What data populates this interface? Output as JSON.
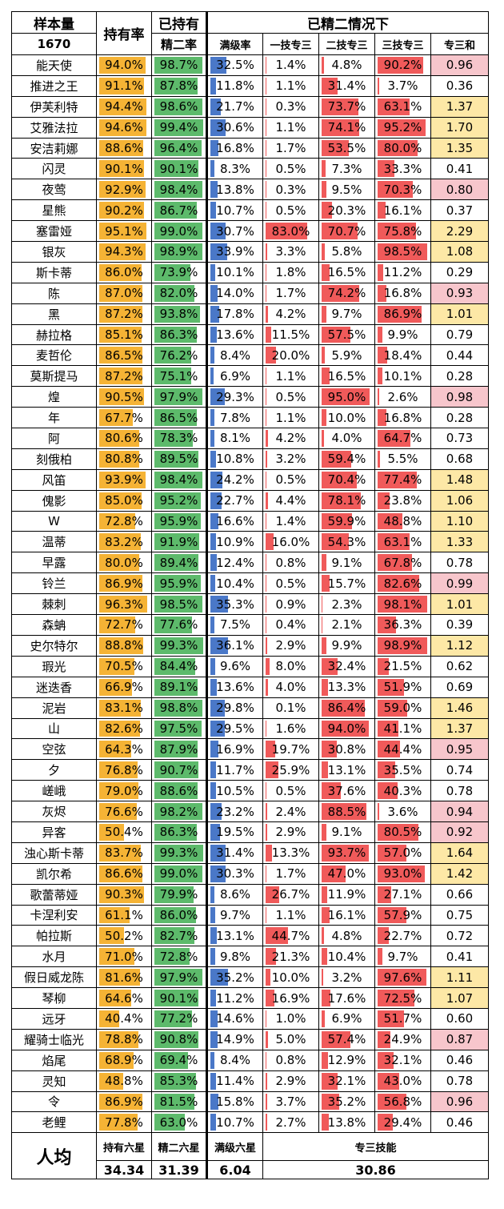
{
  "header": {
    "sample_label": "样本量",
    "sample_count": "1670",
    "own_rate": "持有率",
    "e2_rate_line1": "已持有",
    "e2_rate_line2": "精二率",
    "e2_group": "已精二情况下",
    "full_level": "满级率",
    "s1m3": "一技专三",
    "s2m3": "二技专三",
    "s3m3": "三技专三",
    "m3sum": "专三和"
  },
  "colors": {
    "own_bar": "#f5b335",
    "e2_bar": "#5dba6b",
    "level_bar": "#4a78c8",
    "skill_bar": "#f05a5a",
    "sum_yellow": "#fde8a6",
    "sum_pink": "#f7c6cc"
  },
  "rows": [
    {
      "name": "能天使",
      "own": "94.0%",
      "e2": "98.7%",
      "lvl": "32.5%",
      "s1": "1.4%",
      "s2": "4.8%",
      "s3": "90.2%",
      "sum": "0.96",
      "hl": "pink"
    },
    {
      "name": "推进之王",
      "own": "91.1%",
      "e2": "87.8%",
      "lvl": "11.8%",
      "s1": "1.1%",
      "s2": "31.4%",
      "s3": "3.7%",
      "sum": "0.36",
      "hl": ""
    },
    {
      "name": "伊芙利特",
      "own": "94.4%",
      "e2": "98.6%",
      "lvl": "21.7%",
      "s1": "0.3%",
      "s2": "73.7%",
      "s3": "63.1%",
      "sum": "1.37",
      "hl": "yellow"
    },
    {
      "name": "艾雅法拉",
      "own": "94.6%",
      "e2": "99.4%",
      "lvl": "30.6%",
      "s1": "1.1%",
      "s2": "74.1%",
      "s3": "95.2%",
      "sum": "1.70",
      "hl": "yellow"
    },
    {
      "name": "安洁莉娜",
      "own": "88.6%",
      "e2": "96.4%",
      "lvl": "16.8%",
      "s1": "1.7%",
      "s2": "53.5%",
      "s3": "80.0%",
      "sum": "1.35",
      "hl": "yellow"
    },
    {
      "name": "闪灵",
      "own": "90.1%",
      "e2": "90.1%",
      "lvl": "8.3%",
      "s1": "0.5%",
      "s2": "7.3%",
      "s3": "33.3%",
      "sum": "0.41",
      "hl": ""
    },
    {
      "name": "夜莺",
      "own": "92.9%",
      "e2": "98.4%",
      "lvl": "13.8%",
      "s1": "0.3%",
      "s2": "9.5%",
      "s3": "70.3%",
      "sum": "0.80",
      "hl": "pink"
    },
    {
      "name": "星熊",
      "own": "90.2%",
      "e2": "86.7%",
      "lvl": "10.7%",
      "s1": "0.5%",
      "s2": "20.3%",
      "s3": "16.1%",
      "sum": "0.37",
      "hl": ""
    },
    {
      "name": "塞雷娅",
      "own": "95.1%",
      "e2": "99.0%",
      "lvl": "30.7%",
      "s1": "83.0%",
      "s2": "70.7%",
      "s3": "75.8%",
      "sum": "2.29",
      "hl": "yellow"
    },
    {
      "name": "银灰",
      "own": "94.3%",
      "e2": "98.9%",
      "lvl": "33.9%",
      "s1": "3.3%",
      "s2": "5.8%",
      "s3": "98.5%",
      "sum": "1.08",
      "hl": "yellow"
    },
    {
      "name": "斯卡蒂",
      "own": "86.0%",
      "e2": "73.9%",
      "lvl": "10.1%",
      "s1": "1.8%",
      "s2": "16.5%",
      "s3": "11.2%",
      "sum": "0.29",
      "hl": ""
    },
    {
      "name": "陈",
      "own": "87.0%",
      "e2": "82.0%",
      "lvl": "14.0%",
      "s1": "1.7%",
      "s2": "74.2%",
      "s3": "16.8%",
      "sum": "0.93",
      "hl": "pink"
    },
    {
      "name": "黑",
      "own": "87.2%",
      "e2": "93.8%",
      "lvl": "17.8%",
      "s1": "4.2%",
      "s2": "9.7%",
      "s3": "86.9%",
      "sum": "1.01",
      "hl": "yellow"
    },
    {
      "name": "赫拉格",
      "own": "85.1%",
      "e2": "86.3%",
      "lvl": "13.6%",
      "s1": "11.5%",
      "s2": "57.5%",
      "s3": "9.9%",
      "sum": "0.79",
      "hl": ""
    },
    {
      "name": "麦哲伦",
      "own": "86.5%",
      "e2": "76.2%",
      "lvl": "8.4%",
      "s1": "20.0%",
      "s2": "5.9%",
      "s3": "18.4%",
      "sum": "0.44",
      "hl": ""
    },
    {
      "name": "莫斯提马",
      "own": "87.2%",
      "e2": "75.1%",
      "lvl": "6.9%",
      "s1": "1.1%",
      "s2": "16.5%",
      "s3": "10.1%",
      "sum": "0.28",
      "hl": ""
    },
    {
      "name": "煌",
      "own": "90.5%",
      "e2": "97.9%",
      "lvl": "29.3%",
      "s1": "0.5%",
      "s2": "95.0%",
      "s3": "2.6%",
      "sum": "0.98",
      "hl": "pink"
    },
    {
      "name": "年",
      "own": "67.7%",
      "e2": "86.5%",
      "lvl": "7.8%",
      "s1": "1.1%",
      "s2": "10.0%",
      "s3": "16.8%",
      "sum": "0.28",
      "hl": ""
    },
    {
      "name": "阿",
      "own": "80.6%",
      "e2": "78.3%",
      "lvl": "8.1%",
      "s1": "4.2%",
      "s2": "4.0%",
      "s3": "64.7%",
      "sum": "0.73",
      "hl": ""
    },
    {
      "name": "刻俄柏",
      "own": "80.8%",
      "e2": "89.5%",
      "lvl": "10.8%",
      "s1": "3.2%",
      "s2": "59.4%",
      "s3": "5.5%",
      "sum": "0.68",
      "hl": ""
    },
    {
      "name": "风笛",
      "own": "93.9%",
      "e2": "98.4%",
      "lvl": "24.2%",
      "s1": "0.5%",
      "s2": "70.4%",
      "s3": "77.4%",
      "sum": "1.48",
      "hl": "yellow"
    },
    {
      "name": "傀影",
      "own": "85.0%",
      "e2": "95.2%",
      "lvl": "22.7%",
      "s1": "4.4%",
      "s2": "78.1%",
      "s3": "23.8%",
      "sum": "1.06",
      "hl": "yellow"
    },
    {
      "name": "W",
      "own": "72.8%",
      "e2": "95.9%",
      "lvl": "16.6%",
      "s1": "1.4%",
      "s2": "59.9%",
      "s3": "48.8%",
      "sum": "1.10",
      "hl": "yellow"
    },
    {
      "name": "温蒂",
      "own": "83.2%",
      "e2": "91.9%",
      "lvl": "10.9%",
      "s1": "16.0%",
      "s2": "54.3%",
      "s3": "63.1%",
      "sum": "1.33",
      "hl": "yellow"
    },
    {
      "name": "早露",
      "own": "80.0%",
      "e2": "89.4%",
      "lvl": "12.4%",
      "s1": "0.8%",
      "s2": "9.1%",
      "s3": "67.8%",
      "sum": "0.78",
      "hl": ""
    },
    {
      "name": "铃兰",
      "own": "86.9%",
      "e2": "95.9%",
      "lvl": "10.4%",
      "s1": "0.5%",
      "s2": "15.7%",
      "s3": "82.6%",
      "sum": "0.99",
      "hl": "pink"
    },
    {
      "name": "棘刺",
      "own": "96.3%",
      "e2": "98.5%",
      "lvl": "35.3%",
      "s1": "0.9%",
      "s2": "2.3%",
      "s3": "98.1%",
      "sum": "1.01",
      "hl": "yellow"
    },
    {
      "name": "森蚺",
      "own": "72.7%",
      "e2": "77.6%",
      "lvl": "7.5%",
      "s1": "0.4%",
      "s2": "2.1%",
      "s3": "36.3%",
      "sum": "0.39",
      "hl": ""
    },
    {
      "name": "史尔特尔",
      "own": "88.8%",
      "e2": "99.3%",
      "lvl": "36.1%",
      "s1": "2.9%",
      "s2": "9.9%",
      "s3": "98.9%",
      "sum": "1.12",
      "hl": "yellow"
    },
    {
      "name": "瑕光",
      "own": "70.5%",
      "e2": "84.4%",
      "lvl": "9.6%",
      "s1": "8.0%",
      "s2": "32.4%",
      "s3": "21.5%",
      "sum": "0.62",
      "hl": ""
    },
    {
      "name": "迷迭香",
      "own": "66.9%",
      "e2": "89.1%",
      "lvl": "13.6%",
      "s1": "4.0%",
      "s2": "13.3%",
      "s3": "51.9%",
      "sum": "0.69",
      "hl": ""
    },
    {
      "name": "泥岩",
      "own": "83.1%",
      "e2": "98.8%",
      "lvl": "29.8%",
      "s1": "0.1%",
      "s2": "86.4%",
      "s3": "59.0%",
      "sum": "1.46",
      "hl": "yellow"
    },
    {
      "name": "山",
      "own": "82.6%",
      "e2": "97.5%",
      "lvl": "29.5%",
      "s1": "1.6%",
      "s2": "94.0%",
      "s3": "41.1%",
      "sum": "1.37",
      "hl": "yellow"
    },
    {
      "name": "空弦",
      "own": "64.3%",
      "e2": "87.9%",
      "lvl": "16.9%",
      "s1": "19.7%",
      "s2": "30.8%",
      "s3": "44.4%",
      "sum": "0.95",
      "hl": "pink"
    },
    {
      "name": "夕",
      "own": "76.8%",
      "e2": "90.7%",
      "lvl": "11.7%",
      "s1": "25.9%",
      "s2": "13.1%",
      "s3": "35.5%",
      "sum": "0.74",
      "hl": ""
    },
    {
      "name": "嵯峨",
      "own": "79.0%",
      "e2": "88.6%",
      "lvl": "10.5%",
      "s1": "0.5%",
      "s2": "37.6%",
      "s3": "40.3%",
      "sum": "0.78",
      "hl": ""
    },
    {
      "name": "灰烬",
      "own": "76.6%",
      "e2": "98.2%",
      "lvl": "23.2%",
      "s1": "2.4%",
      "s2": "88.5%",
      "s3": "3.6%",
      "sum": "0.94",
      "hl": "pink"
    },
    {
      "name": "异客",
      "own": "50.4%",
      "e2": "86.3%",
      "lvl": "19.5%",
      "s1": "2.9%",
      "s2": "9.1%",
      "s3": "80.5%",
      "sum": "0.92",
      "hl": "pink"
    },
    {
      "name": "浊心斯卡蒂",
      "own": "83.7%",
      "e2": "99.3%",
      "lvl": "31.4%",
      "s1": "13.3%",
      "s2": "93.7%",
      "s3": "57.0%",
      "sum": "1.64",
      "hl": "yellow"
    },
    {
      "name": "凯尔希",
      "own": "86.6%",
      "e2": "99.0%",
      "lvl": "30.3%",
      "s1": "1.7%",
      "s2": "47.0%",
      "s3": "93.0%",
      "sum": "1.42",
      "hl": "yellow"
    },
    {
      "name": "歌蕾蒂娅",
      "own": "90.3%",
      "e2": "79.9%",
      "lvl": "8.6%",
      "s1": "26.7%",
      "s2": "11.9%",
      "s3": "27.1%",
      "sum": "0.66",
      "hl": ""
    },
    {
      "name": "卡涅利安",
      "own": "61.1%",
      "e2": "86.0%",
      "lvl": "9.7%",
      "s1": "1.1%",
      "s2": "16.1%",
      "s3": "57.9%",
      "sum": "0.75",
      "hl": ""
    },
    {
      "name": "帕拉斯",
      "own": "50.2%",
      "e2": "82.7%",
      "lvl": "13.1%",
      "s1": "44.7%",
      "s2": "4.8%",
      "s3": "22.7%",
      "sum": "0.72",
      "hl": ""
    },
    {
      "name": "水月",
      "own": "71.0%",
      "e2": "72.8%",
      "lvl": "9.8%",
      "s1": "21.3%",
      "s2": "10.4%",
      "s3": "9.7%",
      "sum": "0.41",
      "hl": ""
    },
    {
      "name": "假日威龙陈",
      "own": "81.6%",
      "e2": "97.9%",
      "lvl": "35.2%",
      "s1": "10.0%",
      "s2": "3.2%",
      "s3": "97.6%",
      "sum": "1.11",
      "hl": "yellow"
    },
    {
      "name": "琴柳",
      "own": "64.6%",
      "e2": "90.1%",
      "lvl": "11.2%",
      "s1": "16.9%",
      "s2": "17.6%",
      "s3": "72.5%",
      "sum": "1.07",
      "hl": "yellow"
    },
    {
      "name": "远牙",
      "own": "40.4%",
      "e2": "77.2%",
      "lvl": "14.6%",
      "s1": "1.0%",
      "s2": "6.9%",
      "s3": "51.7%",
      "sum": "0.60",
      "hl": ""
    },
    {
      "name": "耀骑士临光",
      "own": "78.8%",
      "e2": "90.8%",
      "lvl": "14.9%",
      "s1": "5.0%",
      "s2": "57.4%",
      "s3": "24.9%",
      "sum": "0.87",
      "hl": "pink"
    },
    {
      "name": "焰尾",
      "own": "68.9%",
      "e2": "69.4%",
      "lvl": "8.4%",
      "s1": "0.8%",
      "s2": "12.9%",
      "s3": "32.1%",
      "sum": "0.46",
      "hl": ""
    },
    {
      "name": "灵知",
      "own": "48.8%",
      "e2": "85.3%",
      "lvl": "11.4%",
      "s1": "2.9%",
      "s2": "32.1%",
      "s3": "43.0%",
      "sum": "0.78",
      "hl": ""
    },
    {
      "name": "令",
      "own": "86.9%",
      "e2": "81.5%",
      "lvl": "15.8%",
      "s1": "3.7%",
      "s2": "35.2%",
      "s3": "56.8%",
      "sum": "0.96",
      "hl": "pink"
    },
    {
      "name": "老鲤",
      "own": "77.8%",
      "e2": "63.0%",
      "lvl": "10.7%",
      "s1": "2.7%",
      "s2": "13.8%",
      "s3": "29.4%",
      "sum": "0.46",
      "hl": ""
    }
  ],
  "footer": {
    "avg_label": "人均",
    "own6_label": "持有六星",
    "e2_6_label": "精二六星",
    "lvl6_label": "满级六星",
    "m3_label": "专三技能",
    "own6_val": "34.34",
    "e2_6_val": "31.39",
    "lvl6_val": "6.04",
    "m3_val": "30.86"
  }
}
